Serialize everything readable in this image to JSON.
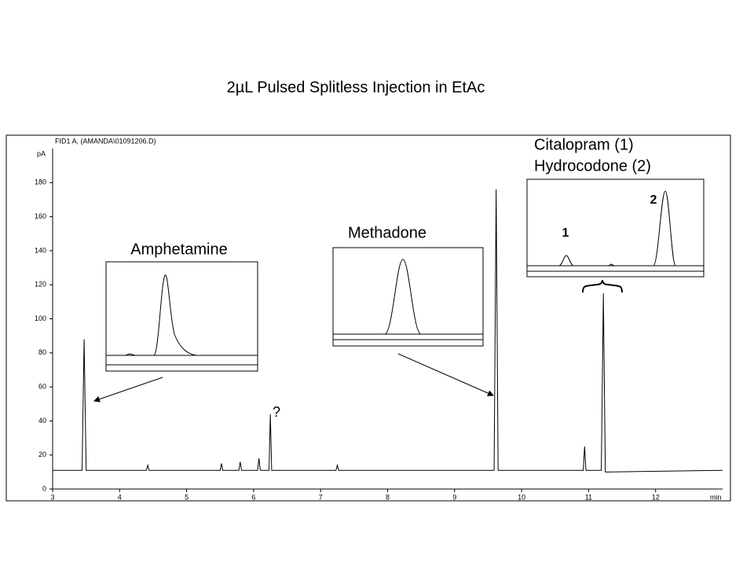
{
  "chart_data": {
    "type": "line",
    "title": "2µL Pulsed Splitless Injection in EtAc",
    "header": "FID1 A,  (AMANDA\\01091206.D)",
    "x_label": "min",
    "y_label": "pA",
    "x": [
      3.0,
      3.44,
      3.47,
      3.5,
      4.4,
      4.42,
      4.44,
      5.5,
      5.52,
      5.54,
      5.78,
      5.8,
      5.82,
      6.06,
      6.08,
      6.1,
      6.23,
      6.25,
      6.27,
      7.23,
      7.25,
      7.27,
      9.59,
      9.62,
      9.65,
      10.92,
      10.94,
      10.96,
      11.19,
      11.22,
      11.25,
      13.0
    ],
    "series": [
      {
        "color": "#000000",
        "values": [
          11,
          11,
          88,
          11,
          11,
          14,
          11,
          11,
          15,
          11,
          11,
          16,
          11,
          11,
          18,
          11,
          11,
          44,
          11,
          11,
          14,
          11,
          11,
          176,
          11,
          11,
          25,
          11,
          11,
          115,
          10,
          11
        ]
      }
    ],
    "xlim": [
      3,
      13
    ],
    "ylim": [
      0,
      200
    ],
    "xticks": [
      3,
      4,
      5,
      6,
      7,
      8,
      9,
      10,
      11,
      12
    ],
    "yticks": [
      0,
      20,
      40,
      60,
      80,
      100,
      120,
      140,
      160,
      180
    ],
    "annotations": [
      "Amphetamine",
      "Methadone",
      "Citalopram (1)",
      "Hydrocodone (2)",
      "1",
      "2",
      "?"
    ]
  }
}
